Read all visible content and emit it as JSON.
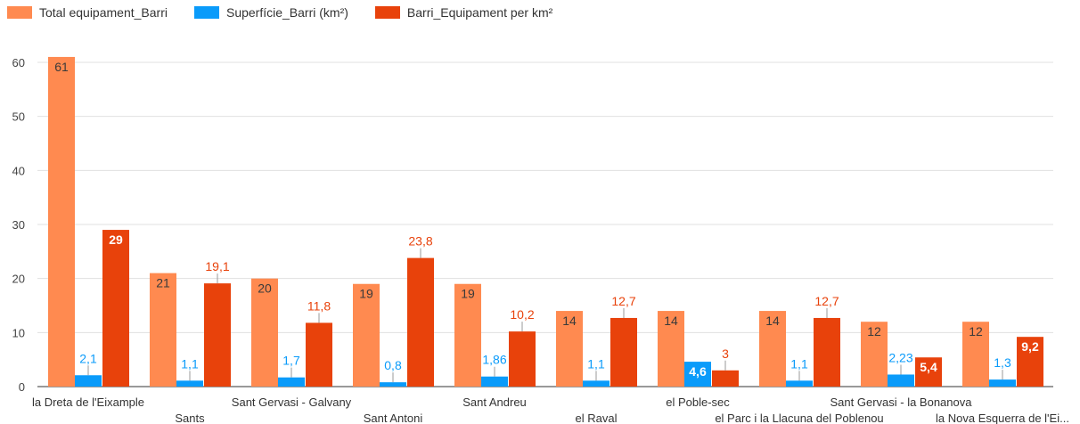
{
  "chart_data": {
    "type": "bar",
    "categories": [
      "la Dreta de l'Eixample",
      "Sants",
      "Sant Gervasi - Galvany",
      "Sant Antoni",
      "Sant Andreu",
      "el Raval",
      "el Poble-sec",
      "el Parc i la Llacuna del Poblenou",
      "Sant Gervasi - la Bonanova",
      "la Nova Esquerra de l'Ei..."
    ],
    "series": [
      {
        "name": "Total equipament_Barri",
        "color": "#FF8A50",
        "values": [
          61,
          21,
          20,
          19,
          19,
          14,
          14,
          14,
          12,
          12
        ],
        "labels": [
          "61",
          "21",
          "20",
          "19",
          "19",
          "14",
          "14",
          "14",
          "12",
          "12"
        ]
      },
      {
        "name": "Superfície_Barri (km²)",
        "color": "#0A9BFA",
        "values": [
          2.1,
          1.1,
          1.7,
          0.8,
          1.86,
          1.1,
          4.6,
          1.1,
          2.23,
          1.3
        ],
        "labels": [
          "2,1",
          "1,1",
          "1,7",
          "0,8",
          "1,86",
          "1,1",
          "4,6",
          "1,1",
          "2,23",
          "1,3"
        ]
      },
      {
        "name": "Barri_Equipament per km²",
        "color": "#E8420B",
        "values": [
          29,
          19.1,
          11.8,
          23.8,
          10.2,
          12.7,
          3,
          12.7,
          5.4,
          9.2
        ],
        "labels": [
          "29",
          "19,1",
          "11,8",
          "23,8",
          "10,2",
          "12,7",
          "3",
          "12,7",
          "5,4",
          "9,2"
        ]
      }
    ],
    "yticks": [
      "0",
      "10",
      "20",
      "30",
      "40",
      "50",
      "60"
    ],
    "ylim": [
      0,
      60
    ],
    "grid": true,
    "legend": "top-left"
  }
}
